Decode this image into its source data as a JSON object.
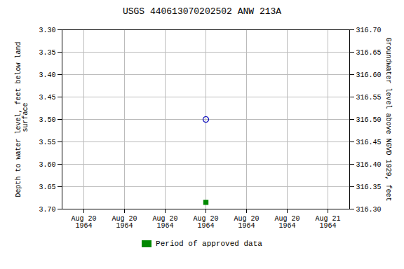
{
  "chart_data": {
    "type": "scatter",
    "title": "USGS 440613070202502 ANW  213A",
    "y_label": "Depth to water level, feet below land\n surface",
    "y2_label": "Groundwater level above NGVD 1929, feet",
    "categories": [
      "Aug 20\n1964",
      "Aug 20\n1964",
      "Aug 20\n1964",
      "Aug 20\n1964",
      "Aug 20\n1964",
      "Aug 20\n1964",
      "Aug 21\n1964"
    ],
    "series": [
      {
        "color": "#0000bb",
        "marker": "circle",
        "values": [
          null,
          null,
          null,
          3.5,
          null,
          null,
          null
        ]
      },
      {
        "name": "Period of approved data",
        "color": "#008800",
        "marker": "square",
        "values": [
          null,
          null,
          null,
          3.685,
          null,
          null,
          null
        ]
      }
    ],
    "ylim": [
      3.7,
      3.3
    ],
    "yticks": [
      {
        "value": 3.3,
        "label": "3.30"
      },
      3.35,
      {
        "value": 3.4,
        "label": "3.40"
      },
      3.45,
      {
        "value": 3.5,
        "label": "3.50"
      },
      3.55,
      {
        "value": 3.6,
        "label": "3.60"
      },
      3.65,
      {
        "value": 3.7,
        "label": "3.70"
      }
    ],
    "y2lim": [
      316.3,
      316.7
    ],
    "y2ticks": [
      {
        "value": 316.7,
        "label": "316.70"
      },
      316.65,
      {
        "value": 316.6,
        "label": "316.60"
      },
      316.55,
      {
        "value": 316.5,
        "label": "316.50"
      },
      316.45,
      {
        "value": 316.4,
        "label": "316.40"
      },
      316.35,
      {
        "value": 316.3,
        "label": "316.30"
      }
    ],
    "grid": true,
    "legend": "bottom"
  }
}
